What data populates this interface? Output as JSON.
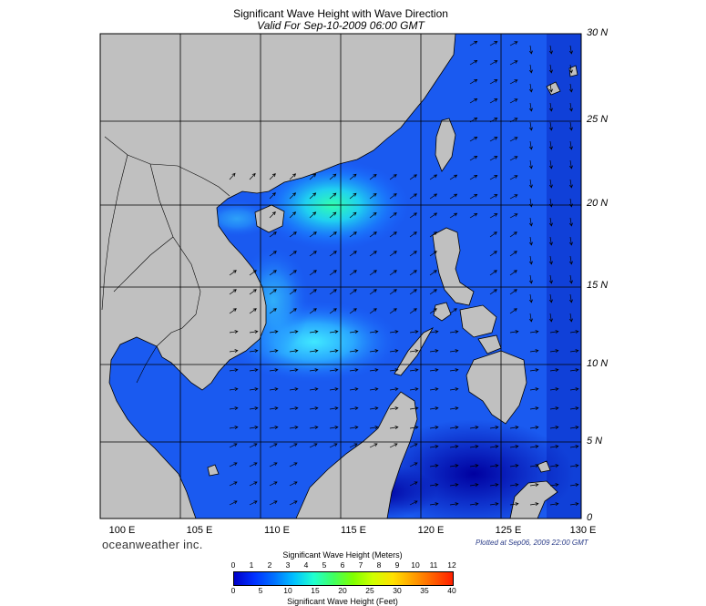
{
  "title": "Significant Wave Height with Wave Direction",
  "subtitle": "Valid For Sep-10-2009 06:00 GMT",
  "map": {
    "lon_range": [
      100,
      130
    ],
    "lat_range": [
      0,
      30
    ],
    "lon_labels": [
      "100 E",
      "105 E",
      "110 E",
      "115 E",
      "120 E",
      "125 E",
      "130 E"
    ],
    "lat_labels": [
      "30 N",
      "25 N",
      "20 N",
      "15 N",
      "10 N",
      "5 N",
      "0"
    ],
    "land_color": "#c0c0c0",
    "grid_color": "#000000"
  },
  "branding": "oceanweather inc.",
  "plotted_at": "Plotted at Sep06, 2009 22:00 GMT",
  "colorbar": {
    "title_meters": "Significant Wave Height (Meters)",
    "title_feet": "Significant Wave Height (Feet)",
    "meters_ticks": [
      "0",
      "1",
      "2",
      "3",
      "4",
      "5",
      "6",
      "7",
      "8",
      "9",
      "10",
      "11",
      "12"
    ],
    "feet_ticks": [
      "0",
      "5",
      "10",
      "15",
      "20",
      "25",
      "30",
      "35",
      "40"
    ],
    "colors": [
      "#0000c8",
      "#0030ff",
      "#0070ff",
      "#00c0ff",
      "#20ffd0",
      "#40ff60",
      "#80ff00",
      "#d0ff00",
      "#ffe000",
      "#ffa000",
      "#ff6000",
      "#ff2000"
    ]
  }
}
